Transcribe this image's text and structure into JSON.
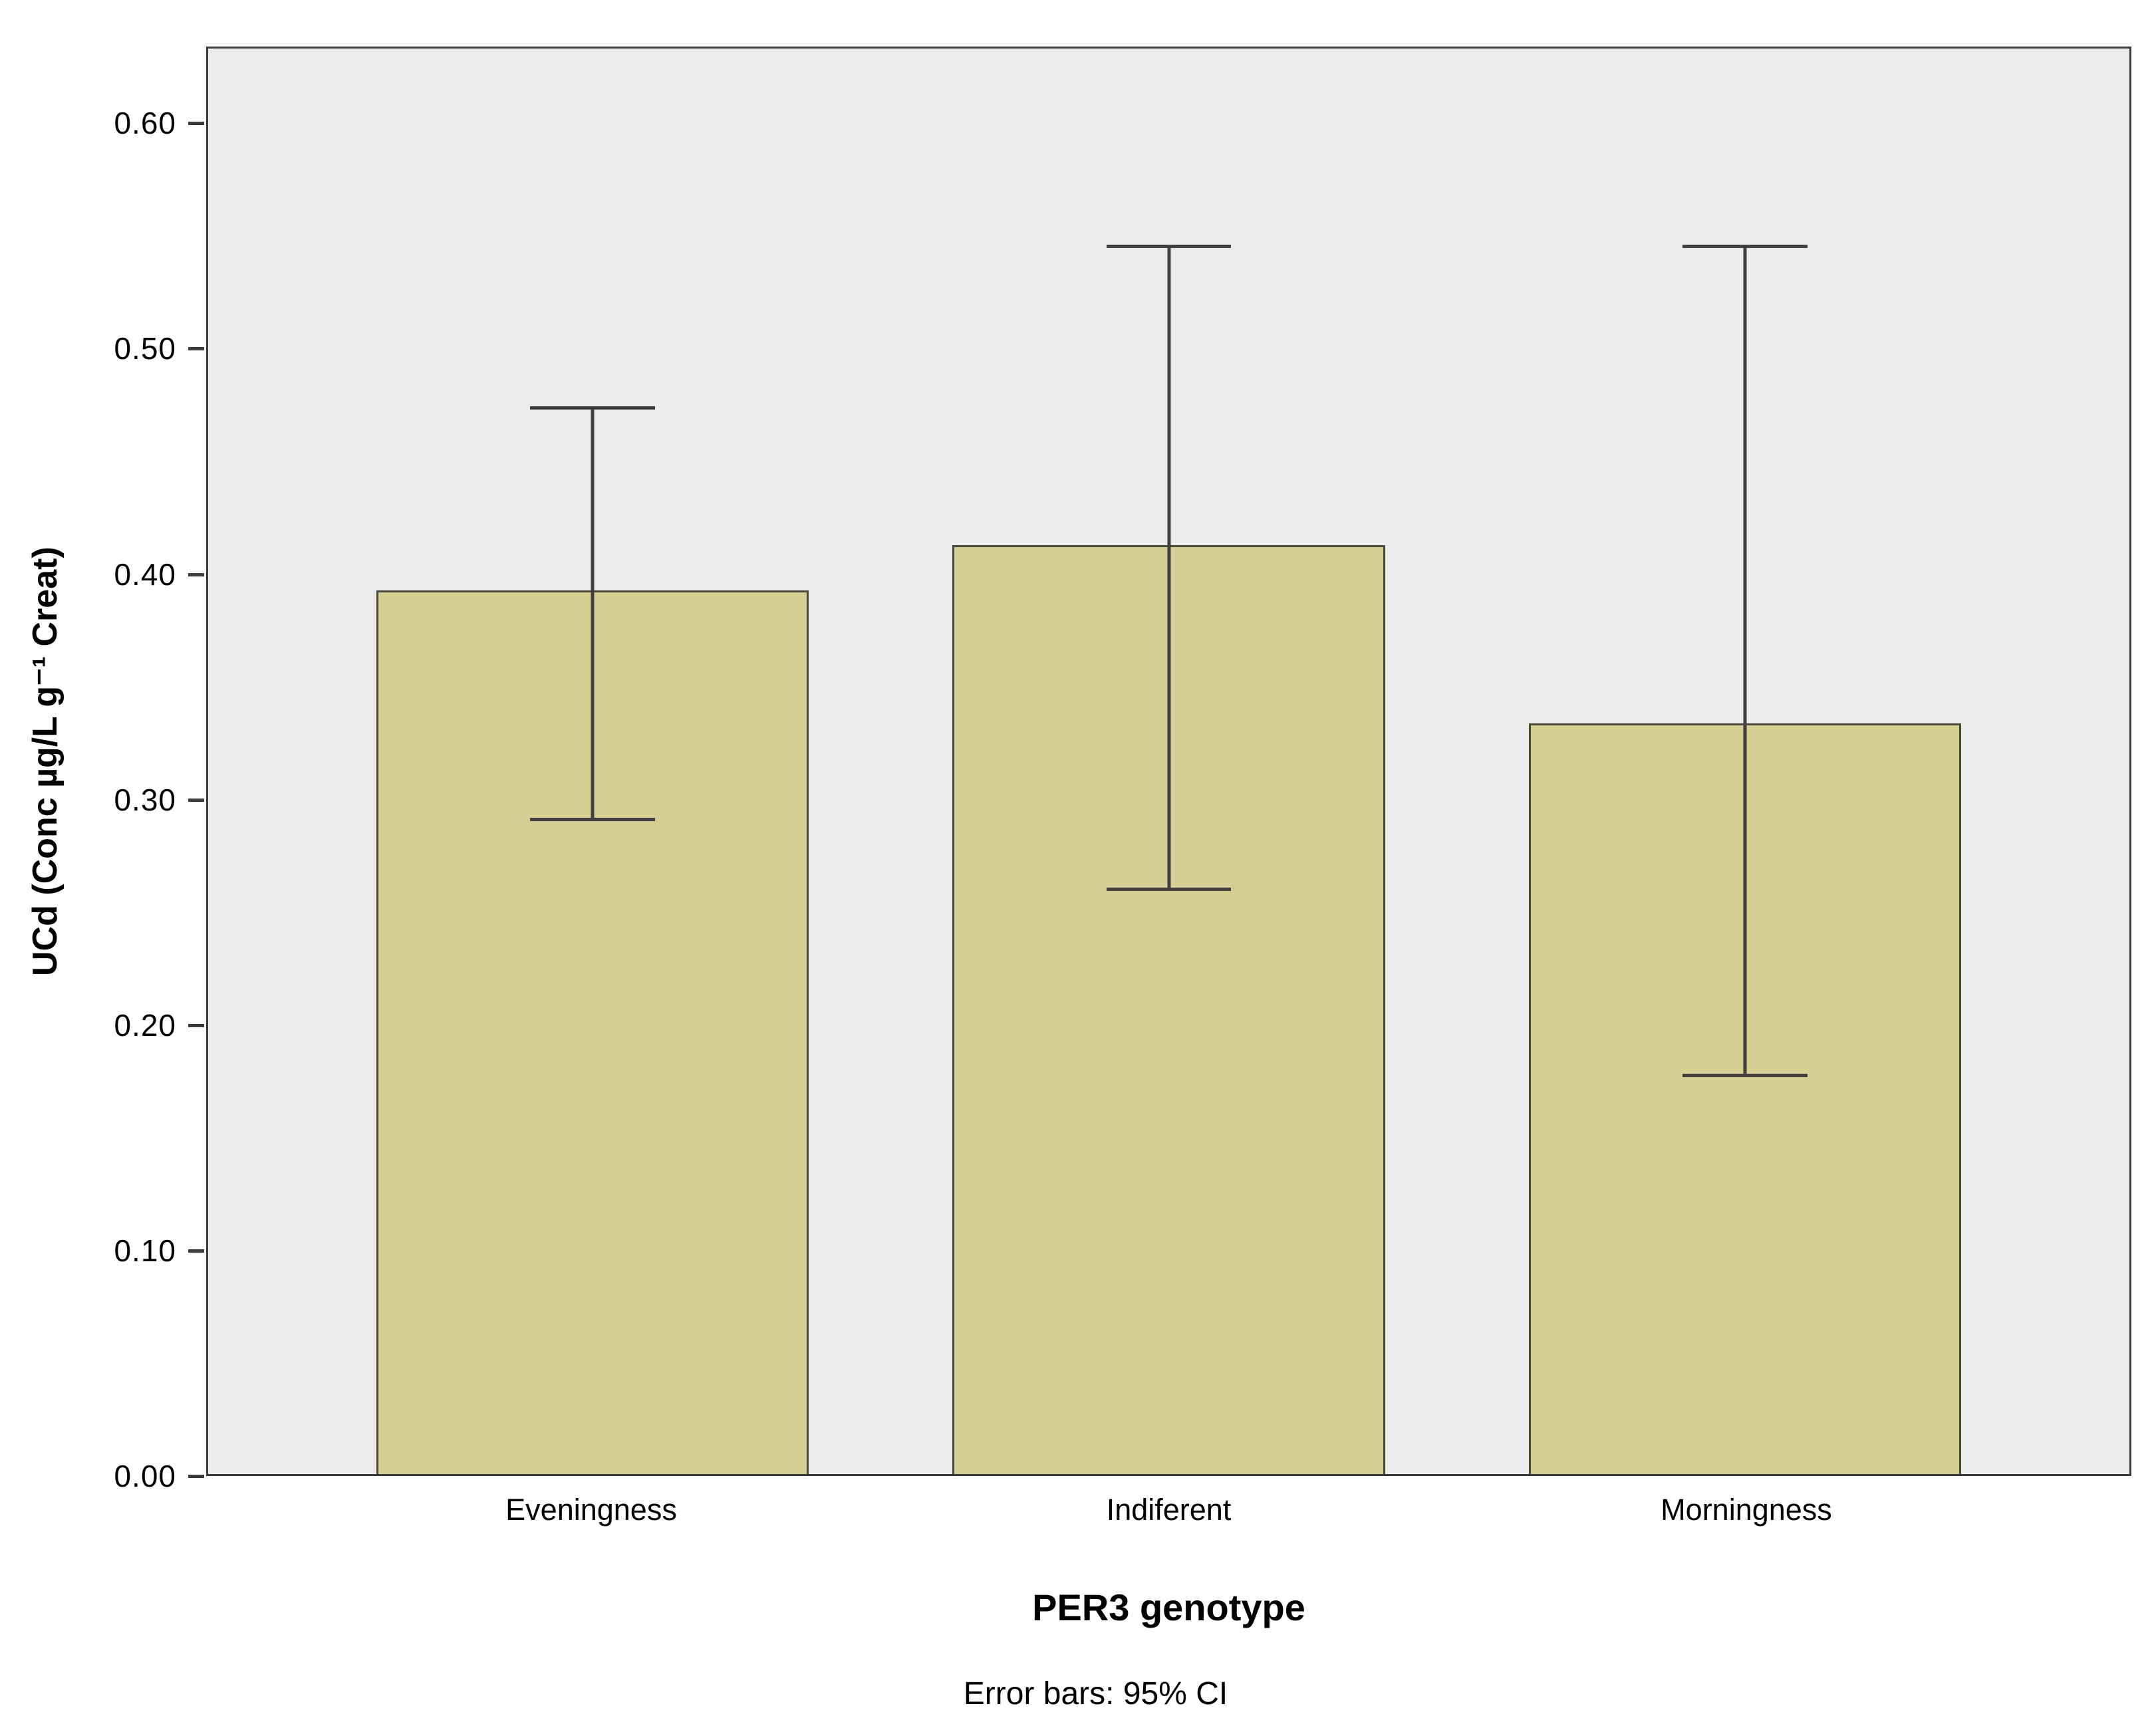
{
  "chart_data": {
    "type": "bar",
    "title": "",
    "xlabel": "PER3 genotype",
    "ylabel": "UCd (Conc µg/L g⁻¹ Creat)",
    "caption": "Error bars: 95% CI",
    "categories": [
      "Eveningness",
      "Indiferent",
      "Morningness"
    ],
    "values": [
      0.393,
      0.413,
      0.334
    ],
    "error_bars": {
      "type": "95% CI",
      "low": [
        0.291,
        0.26,
        0.177
      ],
      "high": [
        0.474,
        0.546,
        0.546
      ]
    },
    "yticks": [
      0.0,
      0.1,
      0.2,
      0.3,
      0.4,
      0.5,
      0.6
    ],
    "ytick_labels": [
      "0.00",
      "0.10",
      "0.20",
      "0.30",
      "0.40",
      "0.50",
      "0.60"
    ],
    "ylim": [
      0,
      0.634
    ],
    "grid": false,
    "legend": null,
    "layout": {
      "bar_centers": [
        0.2,
        0.5,
        0.8
      ],
      "bar_width": 0.225,
      "cap_width": 0.065
    },
    "colors": {
      "bar_fill": "#D6CE93",
      "bar_border": "#4a4a3a",
      "error_bar": "#3f3f3f",
      "plot_bg": "#ECECEC",
      "frame": "#3c3c3c"
    }
  }
}
